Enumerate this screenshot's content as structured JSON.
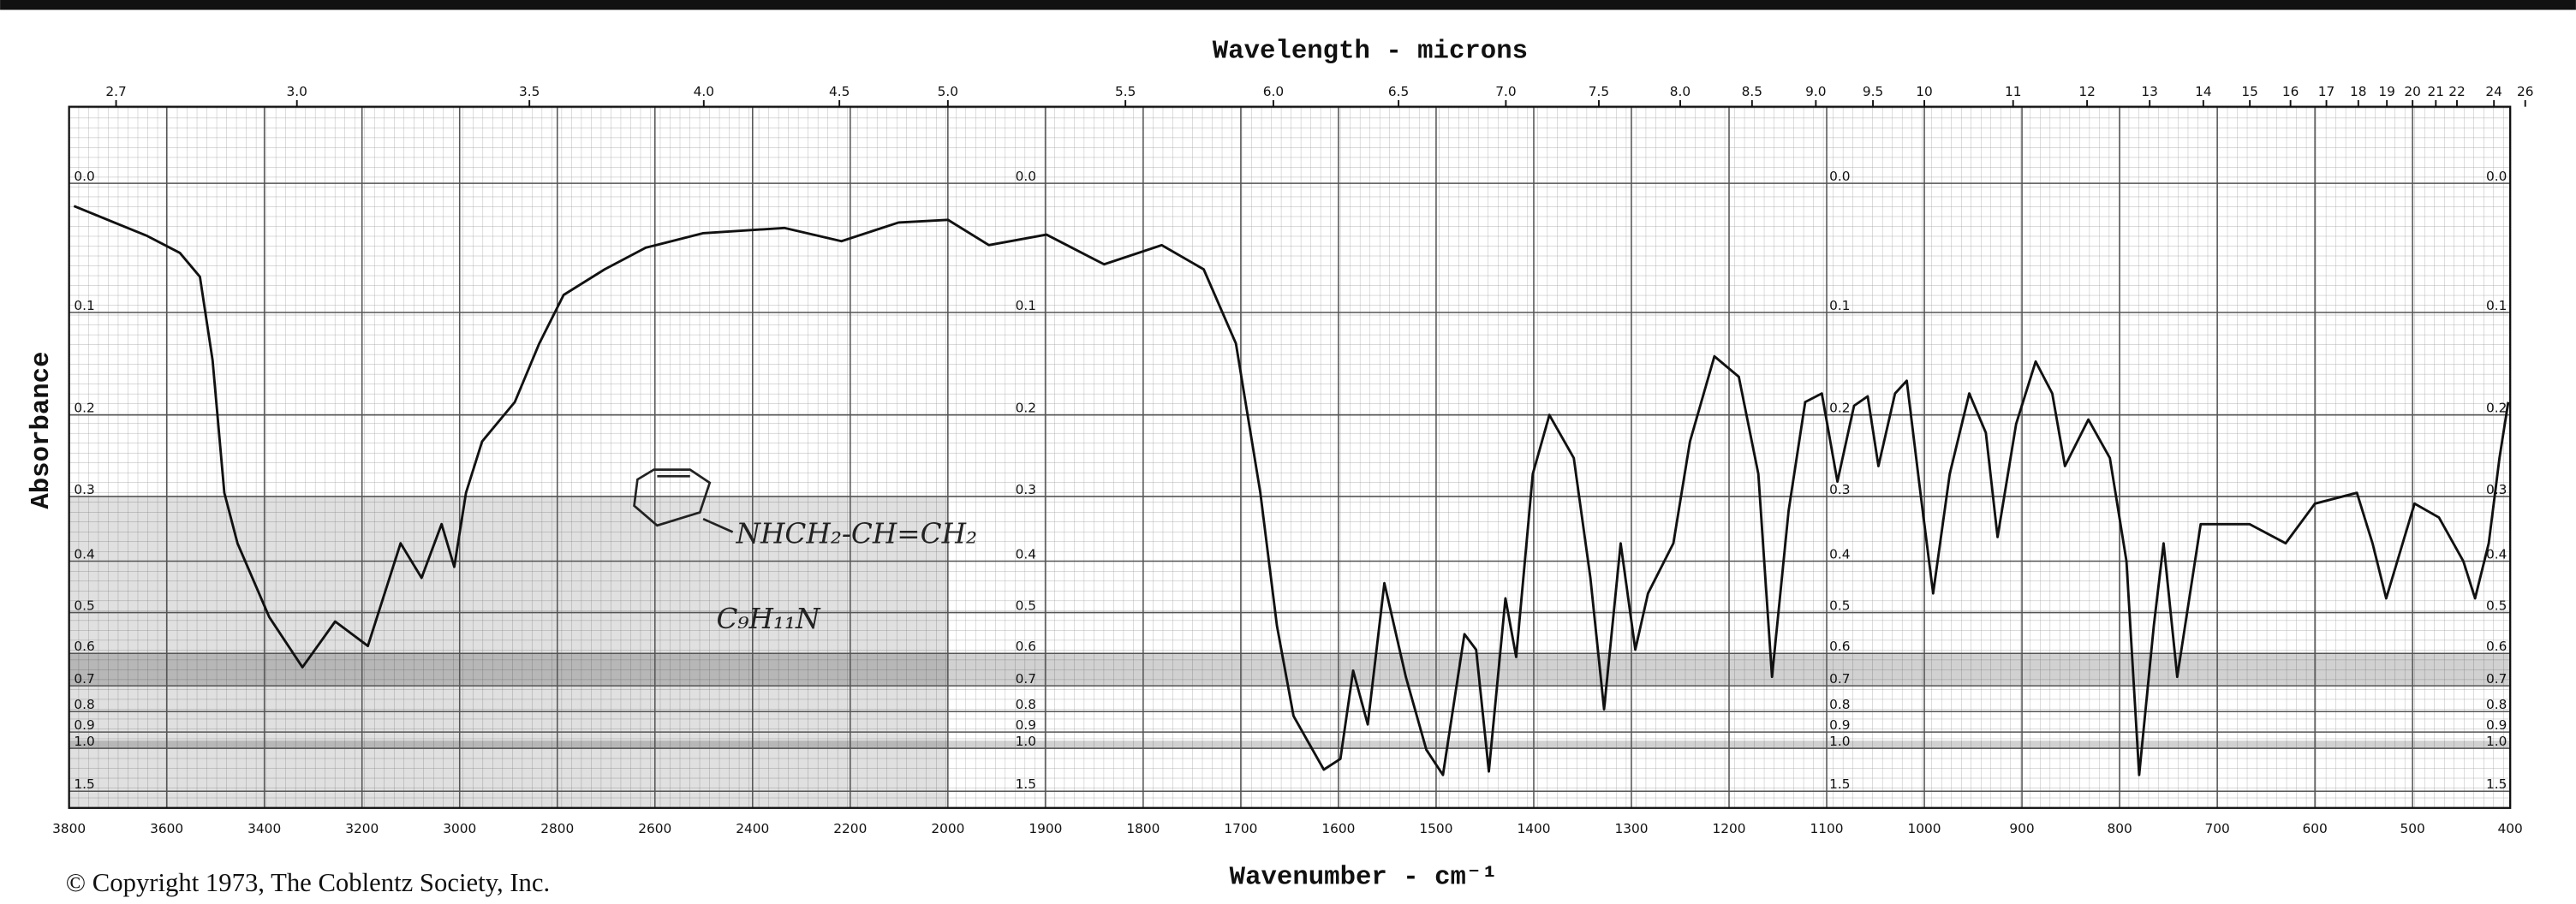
{
  "chart_data": {
    "type": "line",
    "title": "Wavelength - microns",
    "x_label": "Wavenumber - cm⁻¹",
    "y_label": "Absorbance",
    "copyright": "© Copyright 1973, The Coblentz Society, Inc.",
    "annotations": [
      "NHCH₂-CH=CH₂",
      "C₉H₁₁N"
    ],
    "y_scale": "absorbance",
    "grid": true,
    "color": "#111111",
    "xlim": [
      3800,
      400
    ],
    "xticks": [
      3800,
      3600,
      3400,
      3200,
      3000,
      2800,
      2600,
      2400,
      2200,
      2000,
      1900,
      1800,
      1700,
      1600,
      1500,
      1400,
      1300,
      1200,
      1100,
      1000,
      900,
      800,
      700,
      600,
      500,
      400
    ],
    "x2ticks": [
      2.7,
      {
        "value": 3,
        "label": "3.0"
      },
      3.5,
      {
        "value": 4,
        "label": "4.0"
      },
      4.5,
      {
        "value": 5,
        "label": "5.0"
      },
      5.5,
      {
        "value": 6,
        "label": "6.0"
      },
      6.5,
      {
        "value": 7,
        "label": "7.0"
      },
      7.5,
      {
        "value": 8,
        "label": "8.0"
      },
      8.5,
      {
        "value": 9,
        "label": "9.0"
      },
      9.5,
      10,
      11,
      12,
      13,
      14,
      15,
      16,
      17,
      18,
      19,
      20,
      21,
      22,
      24,
      26
    ],
    "ylim": [
      -0.05,
      2.3
    ],
    "yticks": [
      {
        "value": 0,
        "label": "0.0"
      },
      0.1,
      0.2,
      0.3,
      0.4,
      0.5,
      0.6,
      0.7,
      0.8,
      0.9,
      {
        "value": 1,
        "label": "1.0"
      },
      1.5
    ],
    "x": [
      3790,
      3640,
      3573,
      3532,
      3506,
      3482,
      3455,
      3390,
      3322,
      3255,
      3188,
      3121,
      3078,
      3037,
      3011,
      2987,
      2954,
      2887,
      2837,
      2787,
      2703,
      2619,
      2502,
      2335,
      2218,
      2101,
      2000,
      1958,
      1899,
      1840,
      1781,
      1738,
      1705,
      1680,
      1663,
      1646,
      1615,
      1598,
      1585,
      1570,
      1553,
      1531,
      1510,
      1493,
      1471,
      1459,
      1446,
      1429,
      1418,
      1401,
      1384,
      1359,
      1342,
      1328,
      1311,
      1296,
      1283,
      1257,
      1240,
      1215,
      1190,
      1170,
      1156,
      1139,
      1122,
      1105,
      1089,
      1072,
      1058,
      1047,
      1030,
      1018,
      1004,
      991,
      974,
      954,
      937,
      925,
      906,
      886,
      869,
      856,
      832,
      810,
      793,
      780,
      765,
      755,
      741,
      717,
      667,
      630,
      600,
      557,
      541,
      527,
      498,
      473,
      448,
      436,
      422,
      411,
      402
    ],
    "values": [
      0.016,
      0.038,
      0.051,
      0.07,
      0.144,
      0.295,
      0.37,
      0.51,
      0.64,
      0.52,
      0.58,
      0.37,
      0.43,
      0.34,
      0.41,
      0.295,
      0.23,
      0.186,
      0.128,
      0.085,
      0.064,
      0.047,
      0.036,
      0.032,
      0.042,
      0.028,
      0.026,
      0.045,
      0.037,
      0.06,
      0.045,
      0.064,
      0.128,
      0.295,
      0.53,
      0.82,
      1.18,
      1.08,
      0.65,
      0.86,
      0.44,
      0.67,
      1.01,
      1.24,
      0.55,
      0.59,
      1.2,
      0.47,
      0.61,
      0.27,
      0.2,
      0.25,
      0.43,
      0.79,
      0.37,
      0.59,
      0.46,
      0.37,
      0.23,
      0.14,
      0.16,
      0.27,
      0.67,
      0.32,
      0.186,
      0.177,
      0.28,
      0.19,
      0.18,
      0.26,
      0.177,
      0.164,
      0.295,
      0.46,
      0.27,
      0.177,
      0.22,
      0.36,
      0.21,
      0.145,
      0.177,
      0.26,
      0.205,
      0.25,
      0.4,
      1.24,
      0.53,
      0.37,
      0.67,
      0.34,
      0.34,
      0.37,
      0.31,
      0.295,
      0.37,
      0.47,
      0.31,
      0.33,
      0.4,
      0.47,
      0.37,
      0.25,
      0.186
    ]
  }
}
